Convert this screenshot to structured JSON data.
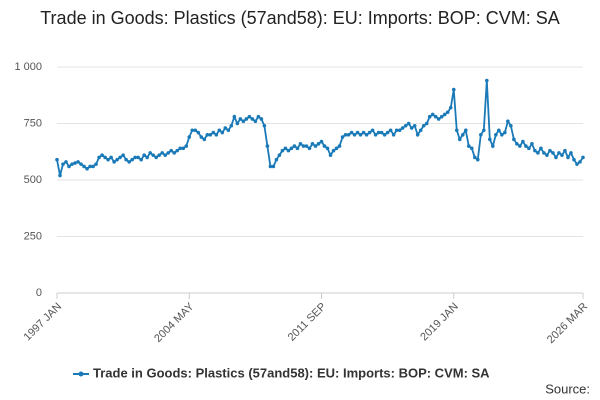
{
  "chart_data": {
    "type": "line",
    "title": "Trade in Goods: Plastics (57and58): EU: Imports: BOP: CVM: SA",
    "source_label": "Source:",
    "categories": [
      "1997 JAN",
      null,
      null,
      null,
      null,
      null,
      null,
      null,
      null,
      null,
      null,
      null,
      null,
      null,
      null,
      null,
      null,
      null,
      null,
      null,
      null,
      null,
      null,
      null,
      null,
      null,
      null,
      null,
      null,
      null,
      null,
      null,
      null,
      null,
      null,
      null,
      null,
      null,
      null,
      null,
      null,
      null,
      null,
      null,
      "2004 MAY",
      null,
      null,
      null,
      null,
      null,
      null,
      null,
      null,
      null,
      null,
      null,
      null,
      null,
      null,
      null,
      null,
      null,
      null,
      null,
      null,
      null,
      null,
      null,
      null,
      null,
      null,
      null,
      null,
      null,
      null,
      null,
      null,
      null,
      null,
      null,
      null,
      null,
      null,
      null,
      null,
      null,
      null,
      null,
      "2011 SEP",
      null,
      null,
      null,
      null,
      null,
      null,
      null,
      null,
      null,
      null,
      null,
      null,
      null,
      null,
      null,
      null,
      null,
      null,
      null,
      null,
      null,
      null,
      null,
      null,
      null,
      null,
      null,
      null,
      null,
      null,
      null,
      null,
      null,
      null,
      null,
      null,
      null,
      null,
      null,
      null,
      null,
      null,
      null,
      "2019 JAN",
      null,
      null,
      null,
      null,
      null,
      null,
      null,
      null,
      null,
      null,
      null,
      null,
      null,
      null,
      null,
      null,
      null,
      null,
      null,
      null,
      null,
      null,
      null,
      null,
      null,
      null,
      null,
      null,
      null,
      null,
      null,
      null,
      null,
      null,
      null,
      null,
      null,
      null,
      null,
      null,
      null,
      null,
      "2026 MAR"
    ],
    "series": [
      {
        "name": "Trade in Goods: Plastics (57and58): EU: Imports: BOP: CVM: SA",
        "color": "#1a7ab8",
        "values": [
          590,
          520,
          570,
          580,
          560,
          570,
          575,
          580,
          570,
          560,
          550,
          560,
          560,
          570,
          600,
          610,
          600,
          590,
          600,
          580,
          590,
          600,
          610,
          590,
          580,
          590,
          600,
          600,
          590,
          610,
          600,
          620,
          610,
          600,
          610,
          620,
          610,
          620,
          630,
          620,
          630,
          640,
          640,
          650,
          690,
          720,
          720,
          710,
          690,
          680,
          700,
          700,
          710,
          700,
          720,
          710,
          730,
          720,
          740,
          780,
          750,
          770,
          760,
          770,
          780,
          770,
          760,
          780,
          770,
          740,
          650,
          560,
          560,
          590,
          610,
          630,
          640,
          630,
          640,
          650,
          640,
          660,
          650,
          650,
          640,
          660,
          650,
          660,
          670,
          650,
          640,
          610,
          630,
          640,
          650,
          690,
          700,
          700,
          710,
          700,
          710,
          700,
          710,
          700,
          710,
          720,
          700,
          710,
          710,
          700,
          710,
          720,
          700,
          720,
          720,
          730,
          740,
          750,
          730,
          740,
          700,
          720,
          740,
          750,
          780,
          790,
          780,
          770,
          780,
          790,
          800,
          820,
          900,
          720,
          680,
          700,
          720,
          650,
          640,
          600,
          590,
          700,
          720,
          940,
          680,
          650,
          700,
          720,
          700,
          710,
          760,
          740,
          680,
          660,
          650,
          670,
          650,
          640,
          660,
          630,
          620,
          640,
          620,
          610,
          630,
          620,
          600,
          620,
          610,
          630,
          600,
          620,
          590,
          570,
          580,
          600
        ]
      }
    ],
    "ylim": [
      0,
      1000
    ],
    "yticks": [
      0,
      250,
      500,
      750,
      {
        "value": 1000,
        "label": "1 000"
      }
    ],
    "grid": true
  }
}
